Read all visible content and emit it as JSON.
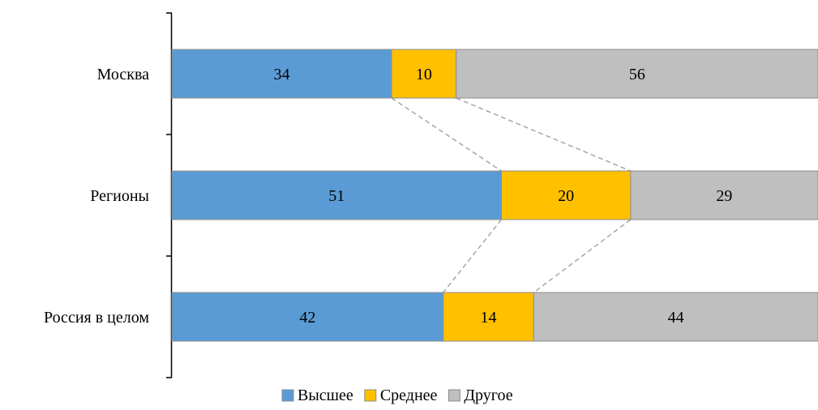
{
  "chart_data": {
    "type": "bar",
    "orientation": "horizontal",
    "stacked": true,
    "percent_stacked": true,
    "categories": [
      "Москва",
      "Регионы",
      "Россия в целом"
    ],
    "series": [
      {
        "name": "Высшее",
        "values": [
          34,
          51,
          42
        ],
        "color": "#5B9BD5"
      },
      {
        "name": "Среднее",
        "values": [
          10,
          20,
          14
        ],
        "color": "#FFC000"
      },
      {
        "name": "Другое",
        "values": [
          56,
          29,
          44
        ],
        "color": "#BFBFBF"
      }
    ],
    "xlim": [
      0,
      100
    ],
    "series_lines": true,
    "grid": false,
    "legend_position": "bottom"
  }
}
